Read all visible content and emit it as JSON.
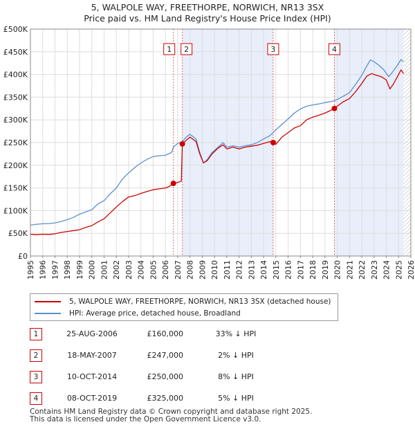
{
  "chart_data": {
    "type": "line",
    "title": "5, WALPOLE WAY, FREETHORPE, NORWICH, NR13 3SX",
    "subtitle": "Price paid vs. HM Land Registry's House Price Index (HPI)",
    "xlabel": "",
    "ylabel": "",
    "xlim": [
      1995,
      2026
    ],
    "ylim": [
      0,
      500000
    ],
    "y_ticks": [
      {
        "value": 0,
        "label": "£0"
      },
      {
        "value": 50000,
        "label": "£50K"
      },
      {
        "value": 100000,
        "label": "£100K"
      },
      {
        "value": 150000,
        "label": "£150K"
      },
      {
        "value": 200000,
        "label": "£200K"
      },
      {
        "value": 250000,
        "label": "£250K"
      },
      {
        "value": 300000,
        "label": "£300K"
      },
      {
        "value": 350000,
        "label": "£350K"
      },
      {
        "value": 400000,
        "label": "£400K"
      },
      {
        "value": 450000,
        "label": "£450K"
      },
      {
        "value": 500000,
        "label": "£500K"
      }
    ],
    "x_ticks": [
      "1995",
      "1996",
      "1997",
      "1998",
      "1999",
      "2000",
      "2001",
      "2002",
      "2003",
      "2004",
      "2005",
      "2006",
      "2007",
      "2008",
      "2009",
      "2010",
      "2011",
      "2012",
      "2013",
      "2014",
      "2015",
      "2016",
      "2017",
      "2018",
      "2019",
      "2020",
      "2021",
      "2022",
      "2023",
      "2024",
      "2025",
      "2026"
    ],
    "grid": true,
    "series": [
      {
        "name": "5, WALPOLE WAY, FREETHORPE, NORWICH, NR13 3SX (detached house)",
        "color": "#cc0000",
        "points": [
          [
            1995,
            48000
          ],
          [
            1995.5,
            47000
          ],
          [
            1996,
            48000
          ],
          [
            1996.5,
            47500
          ],
          [
            1997,
            49000
          ],
          [
            1997.5,
            52000
          ],
          [
            1998,
            54000
          ],
          [
            1998.5,
            56000
          ],
          [
            1999,
            58000
          ],
          [
            1999.5,
            63000
          ],
          [
            2000,
            67000
          ],
          [
            2000.5,
            75000
          ],
          [
            2001,
            82000
          ],
          [
            2001.5,
            95000
          ],
          [
            2002,
            108000
          ],
          [
            2002.5,
            120000
          ],
          [
            2003,
            130000
          ],
          [
            2003.5,
            133000
          ],
          [
            2004,
            138000
          ],
          [
            2004.5,
            142000
          ],
          [
            2005,
            146000
          ],
          [
            2005.5,
            148000
          ],
          [
            2006,
            150000
          ],
          [
            2006.3,
            153000
          ],
          [
            2006.65,
            160000
          ],
          [
            2007.0,
            162000
          ],
          [
            2007.3,
            165000
          ],
          [
            2007.38,
            247000
          ],
          [
            2007.7,
            255000
          ],
          [
            2008,
            262000
          ],
          [
            2008.5,
            252000
          ],
          [
            2008.8,
            225000
          ],
          [
            2009.1,
            205000
          ],
          [
            2009.4,
            210000
          ],
          [
            2009.8,
            225000
          ],
          [
            2010.3,
            238000
          ],
          [
            2010.7,
            245000
          ],
          [
            2011,
            236000
          ],
          [
            2011.5,
            240000
          ],
          [
            2012,
            236000
          ],
          [
            2012.5,
            240000
          ],
          [
            2013,
            242000
          ],
          [
            2013.5,
            244000
          ],
          [
            2014,
            248000
          ],
          [
            2014.5,
            252000
          ],
          [
            2014.78,
            250000
          ],
          [
            2015,
            246000
          ],
          [
            2015.5,
            262000
          ],
          [
            2016,
            272000
          ],
          [
            2016.5,
            282000
          ],
          [
            2017,
            287000
          ],
          [
            2017.5,
            300000
          ],
          [
            2018,
            306000
          ],
          [
            2018.5,
            310000
          ],
          [
            2019,
            315000
          ],
          [
            2019.4,
            320000
          ],
          [
            2019.77,
            325000
          ],
          [
            2020,
            330000
          ],
          [
            2020.5,
            340000
          ],
          [
            2021,
            347000
          ],
          [
            2021.5,
            362000
          ],
          [
            2022,
            380000
          ],
          [
            2022.4,
            396000
          ],
          [
            2022.8,
            402000
          ],
          [
            2023.2,
            398000
          ],
          [
            2023.6,
            395000
          ],
          [
            2024.0,
            388000
          ],
          [
            2024.3,
            368000
          ],
          [
            2024.6,
            380000
          ],
          [
            2024.9,
            395000
          ],
          [
            2025.2,
            410000
          ],
          [
            2025.4,
            402000
          ]
        ]
      },
      {
        "name": "HPI: Average price, detached house, Broadland",
        "color": "#5b8fd0",
        "points": [
          [
            1995,
            68000
          ],
          [
            1995.5,
            70000
          ],
          [
            1996,
            71000
          ],
          [
            1996.5,
            71500
          ],
          [
            1997,
            73000
          ],
          [
            1997.5,
            76000
          ],
          [
            1998,
            80000
          ],
          [
            1998.5,
            85000
          ],
          [
            1999,
            92000
          ],
          [
            1999.5,
            97000
          ],
          [
            2000,
            102000
          ],
          [
            2000.5,
            115000
          ],
          [
            2001,
            122000
          ],
          [
            2001.5,
            137000
          ],
          [
            2002,
            150000
          ],
          [
            2002.5,
            170000
          ],
          [
            2003,
            183000
          ],
          [
            2003.5,
            195000
          ],
          [
            2004,
            205000
          ],
          [
            2004.5,
            213000
          ],
          [
            2005,
            219000
          ],
          [
            2005.5,
            221000
          ],
          [
            2006,
            222000
          ],
          [
            2006.5,
            228000
          ],
          [
            2006.65,
            240000
          ],
          [
            2007,
            248000
          ],
          [
            2007.38,
            252000
          ],
          [
            2007.7,
            262000
          ],
          [
            2008,
            268000
          ],
          [
            2008.5,
            258000
          ],
          [
            2008.8,
            228000
          ],
          [
            2009.1,
            205000
          ],
          [
            2009.4,
            212000
          ],
          [
            2009.8,
            228000
          ],
          [
            2010.3,
            240000
          ],
          [
            2010.7,
            250000
          ],
          [
            2011,
            240000
          ],
          [
            2011.5,
            243000
          ],
          [
            2012,
            240000
          ],
          [
            2012.5,
            243000
          ],
          [
            2013,
            245000
          ],
          [
            2013.5,
            250000
          ],
          [
            2014,
            258000
          ],
          [
            2014.5,
            265000
          ],
          [
            2014.78,
            272000
          ],
          [
            2015,
            278000
          ],
          [
            2015.5,
            290000
          ],
          [
            2016,
            302000
          ],
          [
            2016.5,
            315000
          ],
          [
            2017,
            324000
          ],
          [
            2017.5,
            330000
          ],
          [
            2018,
            333000
          ],
          [
            2018.5,
            335000
          ],
          [
            2019,
            338000
          ],
          [
            2019.4,
            340000
          ],
          [
            2019.77,
            342000
          ],
          [
            2020,
            345000
          ],
          [
            2020.5,
            352000
          ],
          [
            2021,
            360000
          ],
          [
            2021.5,
            378000
          ],
          [
            2022,
            398000
          ],
          [
            2022.4,
            418000
          ],
          [
            2022.7,
            432000
          ],
          [
            2023.0,
            428000
          ],
          [
            2023.4,
            420000
          ],
          [
            2023.8,
            410000
          ],
          [
            2024.2,
            395000
          ],
          [
            2024.5,
            405000
          ],
          [
            2024.9,
            420000
          ],
          [
            2025.2,
            433000
          ],
          [
            2025.4,
            428000
          ]
        ]
      }
    ],
    "sales": [
      {
        "num": "1",
        "x": 2006.65,
        "price": 160000,
        "date": "25-AUG-2006",
        "price_label": "£160,000",
        "hpi": "33% ↓ HPI"
      },
      {
        "num": "2",
        "x": 2007.38,
        "price": 247000,
        "date": "18-MAY-2007",
        "price_label": "£247,000",
        "hpi": "2% ↓ HPI"
      },
      {
        "num": "3",
        "x": 2014.78,
        "price": 250000,
        "date": "10-OCT-2014",
        "price_label": "£250,000",
        "hpi": "8% ↓ HPI"
      },
      {
        "num": "4",
        "x": 2019.77,
        "price": 325000,
        "date": "08-OCT-2019",
        "price_label": "£325,000",
        "hpi": "5% ↓ HPI"
      }
    ],
    "shaded_ranges": [
      [
        2007.38,
        2014.78
      ],
      [
        2019.77,
        2025.4
      ]
    ],
    "hatched_from": 2025.4,
    "legend": {
      "position": "below"
    }
  },
  "footer": {
    "line1": "Contains HM Land Registry data © Crown copyright and database right 2025.",
    "line2": "This data is licensed under the Open Government Licence v3.0."
  }
}
